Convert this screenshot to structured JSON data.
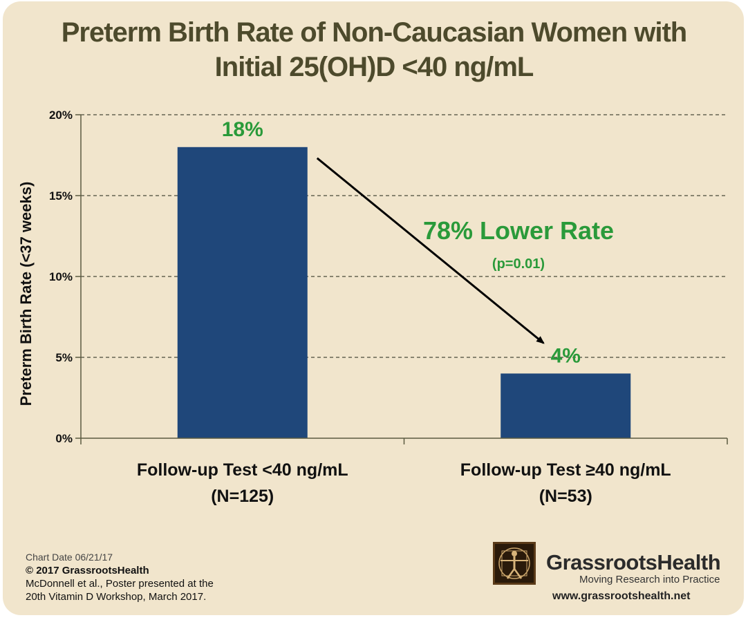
{
  "title_line1": "Preterm Birth Rate of Non-Caucasian Women with",
  "title_line2": "Initial 25(OH)D <40 ng/mL",
  "colors": {
    "background": "#f1e5cc",
    "bar": "#1f477a",
    "label_green": "#2a9a3a",
    "axis": "#5a5a40",
    "title": "#4d4a2c"
  },
  "chart_data": {
    "type": "bar",
    "categories": [
      {
        "line1": "Follow-up Test <40 ng/mL",
        "line2": "(N=125)"
      },
      {
        "line1": "Follow-up Test ≥40 ng/mL",
        "line2": "(N=53)"
      }
    ],
    "values": [
      18,
      4
    ],
    "value_labels": [
      "18%",
      "4%"
    ],
    "ylabel": "Preterm Birth Rate (<37 weeks)",
    "ylim": [
      0,
      20
    ],
    "y_ticks": [
      0,
      5,
      10,
      15,
      20
    ],
    "y_tick_labels": [
      "0%",
      "5%",
      "10%",
      "15%",
      "20%"
    ],
    "grid": "dashed-horizontal",
    "annotation": {
      "text": "78% Lower Rate",
      "subtext": "(p=0.01)",
      "arrow_from_bar": 0,
      "arrow_to_bar": 1
    }
  },
  "footer": {
    "chart_date": "Chart Date 06/21/17",
    "copyright": "© 2017 GrassrootsHealth",
    "citation_line1": "McDonnell et al., Poster presented at the",
    "citation_line2": "20th Vitamin D Workshop, March 2017."
  },
  "brand": {
    "name": "GrassrootsHealth",
    "tagline": "Moving Research into Practice",
    "url": "www.grassrootshealth.net"
  }
}
